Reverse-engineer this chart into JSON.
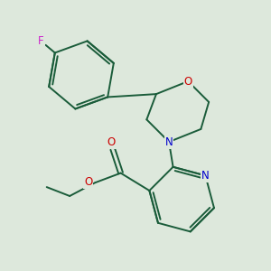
{
  "background_color": "#dde8dc",
  "bond_color": "#1a5c3a",
  "heteroatom_colors": {
    "F": "#cc22cc",
    "O": "#cc0000",
    "N": "#0000cc"
  },
  "figsize": [
    3.0,
    3.0
  ],
  "dpi": 100
}
